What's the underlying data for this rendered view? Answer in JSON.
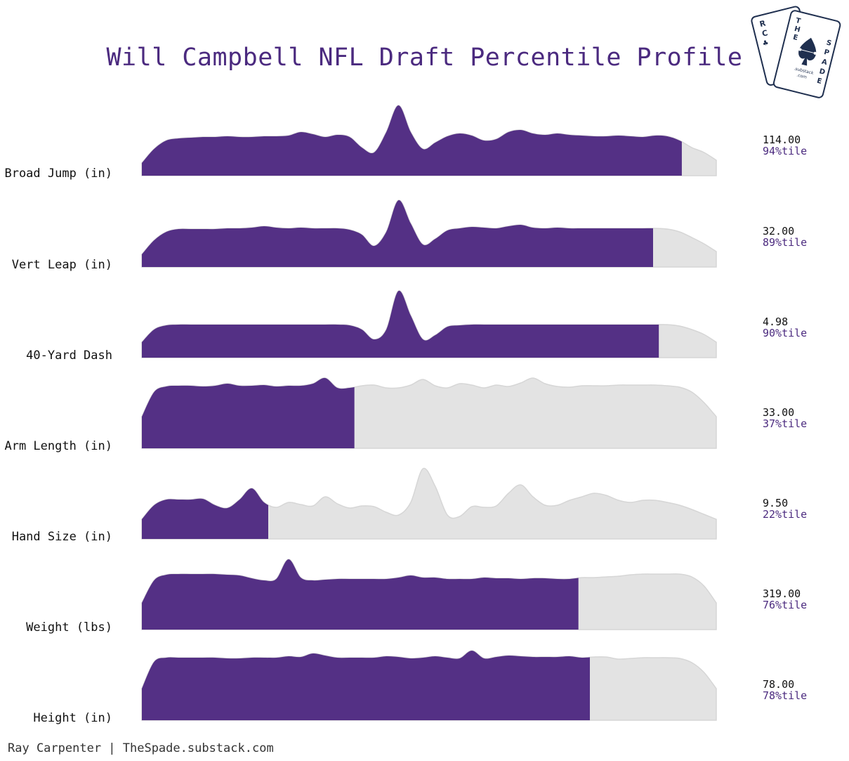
{
  "chart_data": {
    "type": "ridgeline",
    "title": "Will Campbell NFL Draft Percentile Profile",
    "rows": [
      {
        "label": "Broad Jump (in)",
        "value": "114.00",
        "percentile_label": "94%tile",
        "percentile": 94,
        "profile": [
          0.18,
          0.38,
          0.5,
          0.53,
          0.54,
          0.55,
          0.55,
          0.56,
          0.55,
          0.55,
          0.56,
          0.56,
          0.57,
          0.62,
          0.59,
          0.55,
          0.58,
          0.55,
          0.4,
          0.33,
          0.62,
          1.0,
          0.62,
          0.38,
          0.47,
          0.56,
          0.6,
          0.57,
          0.5,
          0.52,
          0.62,
          0.65,
          0.6,
          0.58,
          0.6,
          0.58,
          0.57,
          0.56,
          0.56,
          0.57,
          0.56,
          0.55,
          0.57,
          0.56,
          0.5,
          0.4,
          0.33,
          0.22
        ]
      },
      {
        "label": "Vert Leap (in)",
        "value": "32.00",
        "percentile_label": "89%tile",
        "percentile": 89,
        "profile": [
          0.18,
          0.38,
          0.5,
          0.54,
          0.54,
          0.54,
          0.54,
          0.55,
          0.55,
          0.56,
          0.58,
          0.56,
          0.55,
          0.56,
          0.55,
          0.55,
          0.55,
          0.53,
          0.46,
          0.3,
          0.5,
          0.95,
          0.62,
          0.32,
          0.4,
          0.52,
          0.55,
          0.57,
          0.56,
          0.55,
          0.58,
          0.6,
          0.56,
          0.55,
          0.56,
          0.55,
          0.55,
          0.55,
          0.55,
          0.55,
          0.55,
          0.55,
          0.55,
          0.54,
          0.5,
          0.42,
          0.33,
          0.22
        ]
      },
      {
        "label": "40-Yard Dash",
        "value": "4.98",
        "percentile_label": "90%tile",
        "percentile": 90,
        "profile": [
          0.22,
          0.4,
          0.46,
          0.47,
          0.47,
          0.47,
          0.47,
          0.47,
          0.47,
          0.47,
          0.47,
          0.47,
          0.47,
          0.47,
          0.47,
          0.47,
          0.47,
          0.46,
          0.4,
          0.26,
          0.4,
          0.95,
          0.6,
          0.26,
          0.32,
          0.44,
          0.46,
          0.47,
          0.47,
          0.47,
          0.47,
          0.47,
          0.47,
          0.47,
          0.47,
          0.47,
          0.47,
          0.47,
          0.47,
          0.47,
          0.47,
          0.47,
          0.47,
          0.47,
          0.45,
          0.4,
          0.33,
          0.22
        ]
      },
      {
        "label": "Arm Length (in)",
        "value": "33.00",
        "percentile_label": "37%tile",
        "percentile": 37,
        "profile": [
          0.45,
          0.8,
          0.88,
          0.89,
          0.89,
          0.88,
          0.89,
          0.92,
          0.89,
          0.89,
          0.9,
          0.88,
          0.89,
          0.89,
          0.92,
          1.0,
          0.86,
          0.86,
          0.89,
          0.9,
          0.86,
          0.86,
          0.9,
          0.98,
          0.89,
          0.86,
          0.92,
          0.9,
          0.86,
          0.9,
          0.88,
          0.93,
          1.0,
          0.92,
          0.88,
          0.87,
          0.89,
          0.89,
          0.89,
          0.9,
          0.9,
          0.9,
          0.9,
          0.89,
          0.87,
          0.8,
          0.65,
          0.45
        ]
      },
      {
        "label": "Hand Size (in)",
        "value": "9.50",
        "percentile_label": "22%tile",
        "percentile": 22,
        "profile": [
          0.28,
          0.48,
          0.56,
          0.56,
          0.56,
          0.57,
          0.48,
          0.44,
          0.56,
          0.72,
          0.52,
          0.45,
          0.52,
          0.49,
          0.47,
          0.6,
          0.5,
          0.44,
          0.47,
          0.46,
          0.38,
          0.34,
          0.52,
          1.0,
          0.75,
          0.34,
          0.32,
          0.46,
          0.45,
          0.47,
          0.65,
          0.77,
          0.6,
          0.48,
          0.48,
          0.55,
          0.6,
          0.65,
          0.62,
          0.55,
          0.52,
          0.55,
          0.55,
          0.52,
          0.48,
          0.42,
          0.35,
          0.28
        ]
      },
      {
        "label": "Weight (lbs)",
        "value": "319.00",
        "percentile_label": "76%tile",
        "percentile": 76,
        "profile": [
          0.38,
          0.7,
          0.78,
          0.79,
          0.79,
          0.79,
          0.79,
          0.78,
          0.77,
          0.73,
          0.7,
          0.72,
          1.0,
          0.74,
          0.7,
          0.71,
          0.72,
          0.72,
          0.72,
          0.72,
          0.72,
          0.74,
          0.77,
          0.74,
          0.74,
          0.72,
          0.72,
          0.72,
          0.74,
          0.73,
          0.73,
          0.72,
          0.73,
          0.73,
          0.72,
          0.72,
          0.74,
          0.74,
          0.75,
          0.76,
          0.78,
          0.79,
          0.79,
          0.79,
          0.79,
          0.75,
          0.62,
          0.38
        ]
      },
      {
        "label": "Height (in)",
        "value": "78.00",
        "percentile_label": "78%tile",
        "percentile": 78,
        "profile": [
          0.45,
          0.83,
          0.89,
          0.89,
          0.89,
          0.89,
          0.89,
          0.88,
          0.88,
          0.89,
          0.89,
          0.89,
          0.91,
          0.9,
          0.95,
          0.92,
          0.89,
          0.89,
          0.89,
          0.89,
          0.91,
          0.9,
          0.88,
          0.89,
          0.91,
          0.89,
          0.88,
          0.99,
          0.88,
          0.9,
          0.92,
          0.91,
          0.9,
          0.9,
          0.9,
          0.91,
          0.89,
          0.9,
          0.9,
          0.87,
          0.88,
          0.89,
          0.89,
          0.89,
          0.88,
          0.82,
          0.68,
          0.45
        ]
      }
    ],
    "fill_color": "#543085",
    "rest_color": "#e3e3e3",
    "rest_stroke": "#d6d6d6",
    "title_color": "#4b2a7f"
  },
  "footer": "Ray Carpenter | TheSpade.substack.com",
  "logo": {
    "icon": "playing-cards-logo-icon",
    "letters_back": [
      "R",
      "C"
    ],
    "letters_front": [
      "T",
      "H",
      "E",
      "S",
      "P",
      "A",
      "D",
      "E"
    ],
    "brand_small": ".substack",
    "brand_small2": ".com",
    "color": "#1f2f4f"
  }
}
